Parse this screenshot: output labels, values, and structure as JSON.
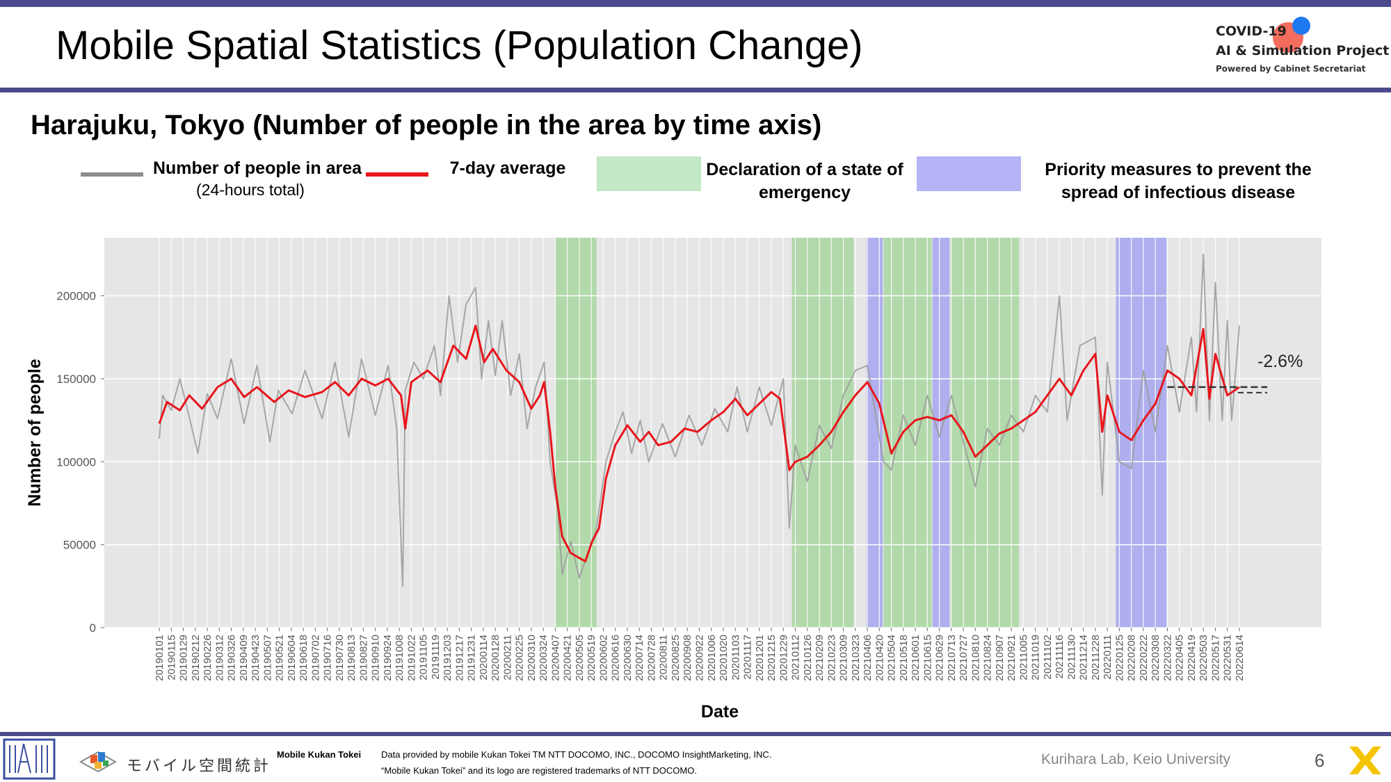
{
  "header": {
    "title": "Mobile Spatial Statistics (Population Change)",
    "logo_line1": "COVID-19",
    "logo_line2": "AI & Simulation Project",
    "logo_line3": "Powered by Cabinet Secretariat"
  },
  "chart_data": {
    "type": "line",
    "title": "Harajuku, Tokyo (Number of people in the area by time axis)",
    "xlabel": "Date",
    "ylabel": "Number of people",
    "ylim": [
      0,
      235000
    ],
    "yticks": [
      0,
      50000,
      100000,
      150000,
      200000
    ],
    "ytick_labels": [
      "0",
      "50000",
      "100000",
      "150000",
      "200000"
    ],
    "grid": true,
    "legend_position": "top",
    "xtick_labels": [
      "20190101",
      "20190115",
      "20190129",
      "20190212",
      "20190226",
      "20190312",
      "20190326",
      "20190409",
      "20190423",
      "20190507",
      "20190521",
      "20190604",
      "20190618",
      "20190702",
      "20190716",
      "20190730",
      "20190813",
      "20190827",
      "20190910",
      "20190924",
      "20191008",
      "20191022",
      "20191105",
      "20191119",
      "20191203",
      "20191217",
      "20191231",
      "20200114",
      "20200128",
      "20200211",
      "20200225",
      "20200310",
      "20200324",
      "20200407",
      "20200421",
      "20200505",
      "20200519",
      "20200602",
      "20200616",
      "20200630",
      "20200714",
      "20200728",
      "20200811",
      "20200825",
      "20200908",
      "20200922",
      "20201006",
      "20201020",
      "20201103",
      "20201117",
      "20201201",
      "20201215",
      "20201229",
      "20210112",
      "20210126",
      "20210209",
      "20210223",
      "20210309",
      "20210323",
      "20210406",
      "20210420",
      "20210504",
      "20210518",
      "20210601",
      "20210615",
      "20210629",
      "20210713",
      "20210727",
      "20210810",
      "20210824",
      "20210907",
      "20210921",
      "20211005",
      "20211019",
      "20211102",
      "20211116",
      "20211130",
      "20211214",
      "20211228",
      "20220111",
      "20220125",
      "20220208",
      "20220222",
      "20220308",
      "20220322",
      "20220405",
      "20220419",
      "20220503",
      "20220517",
      "20220531",
      "20220614"
    ],
    "legend": {
      "daily_line": "Number of people in area",
      "daily_line_sub": "(24-hours total)",
      "avg_line": "7-day average",
      "emergency": "Declaration of a state of emergency",
      "priority": "Priority measures to prevent the spread of infectious disease"
    },
    "series": [
      {
        "name": "7-day average",
        "color": "#e8151b",
        "points": [
          [
            "20190101",
            123000
          ],
          [
            "20190110",
            136000
          ],
          [
            "20190125",
            131000
          ],
          [
            "20190205",
            140000
          ],
          [
            "20190220",
            132000
          ],
          [
            "20190310",
            145000
          ],
          [
            "20190326",
            150000
          ],
          [
            "20190410",
            139000
          ],
          [
            "20190425",
            145000
          ],
          [
            "20190515",
            136000
          ],
          [
            "20190601",
            143000
          ],
          [
            "20190620",
            139000
          ],
          [
            "20190710",
            142000
          ],
          [
            "20190725",
            148000
          ],
          [
            "20190810",
            140000
          ],
          [
            "20190825",
            150000
          ],
          [
            "20190910",
            146000
          ],
          [
            "20190925",
            150000
          ],
          [
            "20191010",
            140000
          ],
          [
            "20191015",
            120000
          ],
          [
            "20191022",
            148000
          ],
          [
            "20191110",
            155000
          ],
          [
            "20191125",
            148000
          ],
          [
            "20191210",
            170000
          ],
          [
            "20191225",
            162000
          ],
          [
            "20200105",
            182000
          ],
          [
            "20200115",
            160000
          ],
          [
            "20200125",
            168000
          ],
          [
            "20200210",
            155000
          ],
          [
            "20200225",
            148000
          ],
          [
            "20200310",
            132000
          ],
          [
            "20200320",
            140000
          ],
          [
            "20200325",
            148000
          ],
          [
            "20200401",
            118000
          ],
          [
            "20200407",
            85000
          ],
          [
            "20200415",
            55000
          ],
          [
            "20200425",
            45000
          ],
          [
            "20200505",
            42000
          ],
          [
            "20200512",
            40000
          ],
          [
            "20200520",
            52000
          ],
          [
            "20200528",
            60000
          ],
          [
            "20200605",
            90000
          ],
          [
            "20200616",
            110000
          ],
          [
            "20200630",
            122000
          ],
          [
            "20200715",
            112000
          ],
          [
            "20200725",
            118000
          ],
          [
            "20200805",
            110000
          ],
          [
            "20200820",
            112000
          ],
          [
            "20200905",
            120000
          ],
          [
            "20200920",
            118000
          ],
          [
            "20201006",
            125000
          ],
          [
            "20201020",
            130000
          ],
          [
            "20201103",
            138000
          ],
          [
            "20201117",
            128000
          ],
          [
            "20201201",
            135000
          ],
          [
            "20201215",
            142000
          ],
          [
            "20201225",
            138000
          ],
          [
            "20210105",
            95000
          ],
          [
            "20210112",
            100000
          ],
          [
            "20210126",
            103000
          ],
          [
            "20210209",
            110000
          ],
          [
            "20210223",
            118000
          ],
          [
            "20210309",
            130000
          ],
          [
            "20210323",
            140000
          ],
          [
            "20210406",
            148000
          ],
          [
            "20210420",
            135000
          ],
          [
            "20210504",
            105000
          ],
          [
            "20210518",
            118000
          ],
          [
            "20210601",
            125000
          ],
          [
            "20210615",
            127000
          ],
          [
            "20210629",
            125000
          ],
          [
            "20210713",
            128000
          ],
          [
            "20210727",
            118000
          ],
          [
            "20210810",
            103000
          ],
          [
            "20210824",
            110000
          ],
          [
            "20210907",
            117000
          ],
          [
            "20210921",
            120000
          ],
          [
            "20211005",
            125000
          ],
          [
            "20211019",
            130000
          ],
          [
            "20211102",
            140000
          ],
          [
            "20211116",
            150000
          ],
          [
            "20211130",
            140000
          ],
          [
            "20211214",
            155000
          ],
          [
            "20211228",
            165000
          ],
          [
            "20220105",
            118000
          ],
          [
            "20220111",
            140000
          ],
          [
            "20220125",
            118000
          ],
          [
            "20220208",
            113000
          ],
          [
            "20220222",
            125000
          ],
          [
            "20220308",
            135000
          ],
          [
            "20220322",
            155000
          ],
          [
            "20220405",
            150000
          ],
          [
            "20220419",
            140000
          ],
          [
            "20220503",
            180000
          ],
          [
            "20220510",
            138000
          ],
          [
            "20220517",
            165000
          ],
          [
            "20220531",
            140000
          ],
          [
            "20220614",
            145000
          ]
        ]
      },
      {
        "name": "Number of people in area",
        "color": "#9a9a9a",
        "points": [
          [
            "20190101",
            114000
          ],
          [
            "20190105",
            140000
          ],
          [
            "20190115",
            131000
          ],
          [
            "20190125",
            150000
          ],
          [
            "20190205",
            127000
          ],
          [
            "20190215",
            105000
          ],
          [
            "20190226",
            141000
          ],
          [
            "20190310",
            126000
          ],
          [
            "20190326",
            162000
          ],
          [
            "20190410",
            123000
          ],
          [
            "20190425",
            158000
          ],
          [
            "20190510",
            112000
          ],
          [
            "20190520",
            143000
          ],
          [
            "20190605",
            129000
          ],
          [
            "20190620",
            155000
          ],
          [
            "20190710",
            126000
          ],
          [
            "20190725",
            160000
          ],
          [
            "20190810",
            115000
          ],
          [
            "20190825",
            162000
          ],
          [
            "20190910",
            128000
          ],
          [
            "20190925",
            158000
          ],
          [
            "20191005",
            120000
          ],
          [
            "20191012",
            25000
          ],
          [
            "20191015",
            143000
          ],
          [
            "20191025",
            160000
          ],
          [
            "20191105",
            150000
          ],
          [
            "20191118",
            170000
          ],
          [
            "20191125",
            140000
          ],
          [
            "20191205",
            200000
          ],
          [
            "20191215",
            160000
          ],
          [
            "20191225",
            195000
          ],
          [
            "20200105",
            205000
          ],
          [
            "20200112",
            150000
          ],
          [
            "20200120",
            185000
          ],
          [
            "20200128",
            152000
          ],
          [
            "20200205",
            185000
          ],
          [
            "20200215",
            140000
          ],
          [
            "20200225",
            165000
          ],
          [
            "20200305",
            120000
          ],
          [
            "20200315",
            145000
          ],
          [
            "20200325",
            160000
          ],
          [
            "20200401",
            100000
          ],
          [
            "20200410",
            70000
          ],
          [
            "20200415",
            32000
          ],
          [
            "20200425",
            52000
          ],
          [
            "20200505",
            30000
          ],
          [
            "20200515",
            45000
          ],
          [
            "20200525",
            60000
          ],
          [
            "20200605",
            100000
          ],
          [
            "20200616",
            118000
          ],
          [
            "20200625",
            130000
          ],
          [
            "20200705",
            105000
          ],
          [
            "20200715",
            125000
          ],
          [
            "20200725",
            100000
          ],
          [
            "20200810",
            123000
          ],
          [
            "20200825",
            103000
          ],
          [
            "20200910",
            128000
          ],
          [
            "20200925",
            110000
          ],
          [
            "20201010",
            132000
          ],
          [
            "20201025",
            118000
          ],
          [
            "20201105",
            145000
          ],
          [
            "20201117",
            118000
          ],
          [
            "20201201",
            145000
          ],
          [
            "20201215",
            122000
          ],
          [
            "20201229",
            150000
          ],
          [
            "20210105",
            60000
          ],
          [
            "20210112",
            110000
          ],
          [
            "20210126",
            88000
          ],
          [
            "20210209",
            122000
          ],
          [
            "20210223",
            108000
          ],
          [
            "20210309",
            140000
          ],
          [
            "20210323",
            155000
          ],
          [
            "20210406",
            158000
          ],
          [
            "20210415",
            130000
          ],
          [
            "20210425",
            100000
          ],
          [
            "20210504",
            95000
          ],
          [
            "20210518",
            128000
          ],
          [
            "20210601",
            110000
          ],
          [
            "20210615",
            140000
          ],
          [
            "20210629",
            115000
          ],
          [
            "20210713",
            140000
          ],
          [
            "20210727",
            112000
          ],
          [
            "20210810",
            85000
          ],
          [
            "20210824",
            120000
          ],
          [
            "20210907",
            110000
          ],
          [
            "20210921",
            128000
          ],
          [
            "20211005",
            118000
          ],
          [
            "20211019",
            140000
          ],
          [
            "20211102",
            130000
          ],
          [
            "20211116",
            200000
          ],
          [
            "20211125",
            125000
          ],
          [
            "20211210",
            170000
          ],
          [
            "20211228",
            175000
          ],
          [
            "20220105",
            80000
          ],
          [
            "20220111",
            160000
          ],
          [
            "20220125",
            100000
          ],
          [
            "20220208",
            96000
          ],
          [
            "20220222",
            155000
          ],
          [
            "20220308",
            118000
          ],
          [
            "20220322",
            170000
          ],
          [
            "20220405",
            130000
          ],
          [
            "20220419",
            175000
          ],
          [
            "20220425",
            130000
          ],
          [
            "20220503",
            225000
          ],
          [
            "20220510",
            125000
          ],
          [
            "20220517",
            208000
          ],
          [
            "20220525",
            125000
          ],
          [
            "20220531",
            185000
          ],
          [
            "20220605",
            125000
          ],
          [
            "20220614",
            182000
          ]
        ]
      }
    ],
    "shaded_periods": [
      {
        "type": "emergency",
        "start": "20200407",
        "end": "20200525",
        "color": "#a8d6a0"
      },
      {
        "type": "emergency",
        "start": "20210108",
        "end": "20210321",
        "color": "#a8d6a0"
      },
      {
        "type": "priority",
        "start": "20210405",
        "end": "20210424",
        "color": "#a4a4f0"
      },
      {
        "type": "emergency",
        "start": "20210425",
        "end": "20210620",
        "color": "#a8d6a0"
      },
      {
        "type": "priority",
        "start": "20210621",
        "end": "20210711",
        "color": "#a4a4f0"
      },
      {
        "type": "emergency",
        "start": "20210712",
        "end": "20210930",
        "color": "#a8d6a0"
      },
      {
        "type": "priority",
        "start": "20220121",
        "end": "20220321",
        "color": "#a4a4f0"
      }
    ],
    "reference_line": {
      "value": 145000,
      "start": "20220322",
      "annotation": "-2.6%"
    }
  },
  "footer": {
    "brand_jp": "モバイル空間統計",
    "brand_en": "Mobile Kukan Tokei",
    "credit_line1": "Data provided by mobile Kukan Tokei TM NTT DOCOMO, INC., DOCOMO InsightMarketing, INC.",
    "credit_line2": "“Mobile Kukan Tokei” and its logo are registered trademarks of NTT DOCOMO.",
    "lab": "Kurihara Lab, Keio University",
    "page_number": "6"
  },
  "colors": {
    "accent_bar": "#4a4a8c",
    "avg_line": "#e8151b",
    "daily_line": "#9a9a9a",
    "emergency": "#a8d6a0",
    "priority": "#a4a4f0",
    "plot_bg": "#e6e6e6"
  }
}
